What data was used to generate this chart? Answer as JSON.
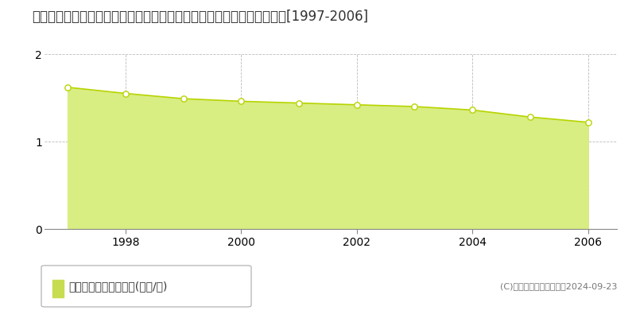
{
  "title": "青森県東津軽郡蓬田村大字広瀬字高根４５番１外　基準地価　地価推移[1997-2006]",
  "years": [
    1997,
    1998,
    1999,
    2000,
    2001,
    2002,
    2003,
    2004,
    2005,
    2006
  ],
  "values": [
    1.62,
    1.55,
    1.49,
    1.46,
    1.44,
    1.42,
    1.4,
    1.36,
    1.28,
    1.22
  ],
  "ylim": [
    0,
    2
  ],
  "yticks": [
    0,
    1,
    2
  ],
  "xlim_left": 1996.6,
  "xlim_right": 2006.5,
  "xticks": [
    1998,
    2000,
    2002,
    2004,
    2006
  ],
  "line_color": "#b8d400",
  "fill_color": "#d8ed82",
  "marker_color": "white",
  "marker_edge_color": "#b8d400",
  "marker_size": 28,
  "grid_color": "#bbbbbb",
  "bg_color": "#ffffff",
  "legend_label": "基準地価　平均嵪単価(万円/嵪)",
  "legend_marker_color": "#c8dc50",
  "copyright_text": "(C)土地価格ドットコム　2024-09-23",
  "title_fontsize": 12,
  "tick_fontsize": 10,
  "legend_fontsize": 10,
  "copyright_fontsize": 8
}
